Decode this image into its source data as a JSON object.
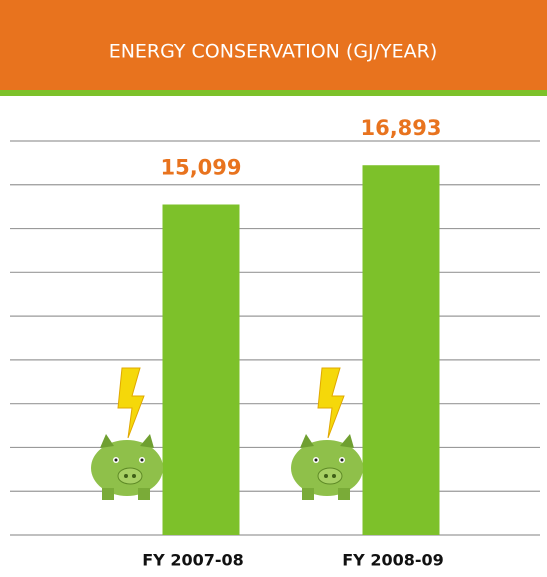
{
  "chart_data": {
    "type": "bar",
    "title": "ENERGY CONSERVATION (GJ/YEAR)",
    "categories": [
      "FY 2007-08",
      "FY 2008-09"
    ],
    "values": [
      15099,
      16893
    ],
    "value_labels": [
      "15,099",
      "16,893"
    ],
    "color": "#7dc12a",
    "ylim": [
      0,
      18000
    ],
    "yticks": [
      0,
      2000,
      4000,
      6000,
      8000,
      10000,
      12000,
      14000,
      16000,
      18000
    ],
    "grid": true
  }
}
